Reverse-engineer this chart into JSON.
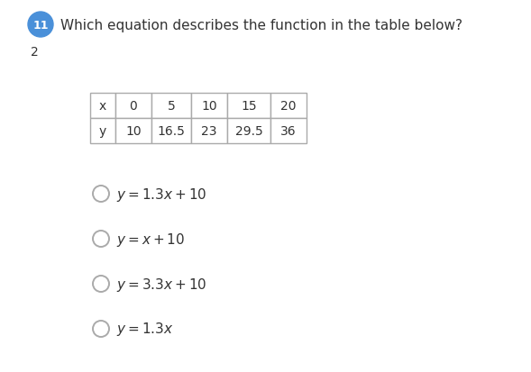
{
  "question_number": "11",
  "question_number_bg": "#4A90D9",
  "question_text": "Which equation describes the function in the table below?",
  "sub_number": "2",
  "table": {
    "row1": [
      "x",
      "0",
      "5",
      "10",
      "15",
      "20"
    ],
    "row2": [
      "y",
      "10",
      "16.5",
      "23",
      "29.5",
      "36"
    ]
  },
  "options": [
    "$y = 1.3x + 10$",
    "$y = x + 10$",
    "$y = 3.3x + 10$",
    "$y = 1.3x$"
  ],
  "bg_color": "#ffffff",
  "text_color": "#333333",
  "table_border_color": "#aaaaaa",
  "option_font_size": 11,
  "question_font_size": 11
}
